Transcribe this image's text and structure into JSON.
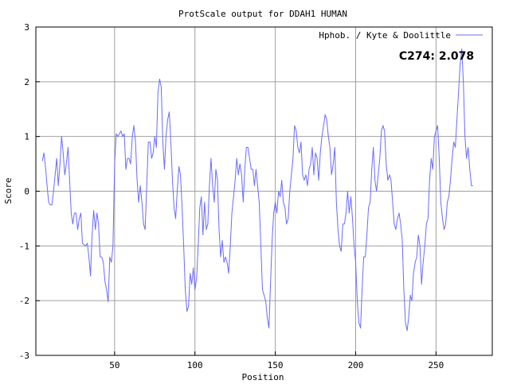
{
  "chart_data": {
    "type": "line",
    "title": "ProtScale output for DDAH1 HUMAN",
    "xlabel": "Position",
    "ylabel": "Score",
    "xlim": [
      1,
      285
    ],
    "ylim": [
      -3,
      3
    ],
    "x_ticks": [
      50,
      100,
      150,
      200,
      250
    ],
    "y_ticks": [
      -3,
      -2,
      -1,
      0,
      1,
      2,
      3
    ],
    "grid": true,
    "legend_position": "top-right",
    "annotation": "C274: 2.078",
    "series": [
      {
        "name": "Hphob. / Kyte & Doolittle",
        "color": "#6b6bff",
        "points": [
          [
            5,
            0.55
          ],
          [
            6,
            0.7
          ],
          [
            7,
            0.45
          ],
          [
            8,
            0.1
          ],
          [
            9,
            -0.2
          ],
          [
            10,
            -0.25
          ],
          [
            11,
            -0.25
          ],
          [
            12,
            0.0
          ],
          [
            13,
            0.3
          ],
          [
            14,
            0.6
          ],
          [
            15,
            0.1
          ],
          [
            16,
            0.5
          ],
          [
            17,
            1.0
          ],
          [
            18,
            0.7
          ],
          [
            19,
            0.3
          ],
          [
            20,
            0.5
          ],
          [
            21,
            0.8
          ],
          [
            22,
            0.2
          ],
          [
            23,
            -0.4
          ],
          [
            24,
            -0.6
          ],
          [
            25,
            -0.4
          ],
          [
            26,
            -0.4
          ],
          [
            27,
            -0.7
          ],
          [
            28,
            -0.5
          ],
          [
            29,
            -0.4
          ],
          [
            30,
            -0.95
          ],
          [
            31,
            -0.98
          ],
          [
            32,
            -1.0
          ],
          [
            33,
            -0.95
          ],
          [
            34,
            -1.2
          ],
          [
            35,
            -1.55
          ],
          [
            36,
            -0.8
          ],
          [
            37,
            -0.35
          ],
          [
            38,
            -0.7
          ],
          [
            39,
            -0.4
          ],
          [
            40,
            -0.6
          ],
          [
            41,
            -1.2
          ],
          [
            42,
            -1.2
          ],
          [
            43,
            -1.3
          ],
          [
            44,
            -1.65
          ],
          [
            45,
            -1.8
          ],
          [
            46,
            -2.02
          ],
          [
            47,
            -1.2
          ],
          [
            48,
            -1.3
          ],
          [
            49,
            -1.0
          ],
          [
            50,
            0.5
          ],
          [
            51,
            1.05
          ],
          [
            52,
            1.0
          ],
          [
            53,
            1.05
          ],
          [
            54,
            1.1
          ],
          [
            55,
            1.0
          ],
          [
            56,
            1.05
          ],
          [
            57,
            0.4
          ],
          [
            58,
            0.6
          ],
          [
            59,
            0.6
          ],
          [
            60,
            0.5
          ],
          [
            61,
            1.0
          ],
          [
            62,
            1.2
          ],
          [
            63,
            0.9
          ],
          [
            64,
            0.2
          ],
          [
            65,
            -0.2
          ],
          [
            66,
            0.1
          ],
          [
            67,
            -0.2
          ],
          [
            68,
            -0.6
          ],
          [
            69,
            -0.7
          ],
          [
            70,
            0.1
          ],
          [
            71,
            0.9
          ],
          [
            72,
            0.9
          ],
          [
            73,
            0.6
          ],
          [
            74,
            0.7
          ],
          [
            75,
            1.0
          ],
          [
            76,
            0.8
          ],
          [
            77,
            1.8
          ],
          [
            78,
            2.05
          ],
          [
            79,
            1.9
          ],
          [
            80,
            0.9
          ],
          [
            81,
            0.4
          ],
          [
            82,
            1.0
          ],
          [
            83,
            1.3
          ],
          [
            84,
            1.45
          ],
          [
            85,
            0.9
          ],
          [
            86,
            0.2
          ],
          [
            87,
            -0.3
          ],
          [
            88,
            -0.5
          ],
          [
            89,
            0.0
          ],
          [
            90,
            0.45
          ],
          [
            91,
            0.3
          ],
          [
            92,
            -0.3
          ],
          [
            93,
            -1.0
          ],
          [
            94,
            -1.8
          ],
          [
            95,
            -2.2
          ],
          [
            96,
            -2.1
          ],
          [
            97,
            -1.5
          ],
          [
            98,
            -1.7
          ],
          [
            99,
            -1.4
          ],
          [
            100,
            -1.8
          ],
          [
            101,
            -1.6
          ],
          [
            102,
            -1.0
          ],
          [
            103,
            -0.3
          ],
          [
            104,
            -0.1
          ],
          [
            105,
            -0.8
          ],
          [
            106,
            -0.2
          ],
          [
            107,
            -0.7
          ],
          [
            108,
            -0.6
          ],
          [
            109,
            0.1
          ],
          [
            110,
            0.6
          ],
          [
            111,
            0.1
          ],
          [
            112,
            -0.2
          ],
          [
            113,
            0.4
          ],
          [
            114,
            0.2
          ],
          [
            115,
            -0.7
          ],
          [
            116,
            -1.2
          ],
          [
            117,
            -0.9
          ],
          [
            118,
            -1.3
          ],
          [
            119,
            -1.2
          ],
          [
            120,
            -1.3
          ],
          [
            121,
            -1.5
          ],
          [
            122,
            -1.0
          ],
          [
            123,
            -0.4
          ],
          [
            124,
            -0.1
          ],
          [
            125,
            0.2
          ],
          [
            126,
            0.6
          ],
          [
            127,
            0.3
          ],
          [
            128,
            0.5
          ],
          [
            129,
            0.3
          ],
          [
            130,
            -0.2
          ],
          [
            131,
            0.4
          ],
          [
            132,
            0.8
          ],
          [
            133,
            0.8
          ],
          [
            134,
            0.6
          ],
          [
            135,
            0.4
          ],
          [
            136,
            0.4
          ],
          [
            137,
            0.1
          ],
          [
            138,
            0.4
          ],
          [
            139,
            0.1
          ],
          [
            140,
            -0.2
          ],
          [
            141,
            -1.0
          ],
          [
            142,
            -1.8
          ],
          [
            143,
            -1.9
          ],
          [
            144,
            -2.0
          ],
          [
            145,
            -2.3
          ],
          [
            146,
            -2.5
          ],
          [
            147,
            -1.7
          ],
          [
            148,
            -0.9
          ],
          [
            149,
            -0.4
          ],
          [
            150,
            -0.2
          ],
          [
            151,
            -0.4
          ],
          [
            152,
            0.0
          ],
          [
            153,
            -0.1
          ],
          [
            154,
            0.2
          ],
          [
            155,
            -0.2
          ],
          [
            156,
            -0.3
          ],
          [
            157,
            -0.6
          ],
          [
            158,
            -0.5
          ],
          [
            159,
            0.0
          ],
          [
            160,
            0.3
          ],
          [
            161,
            0.6
          ],
          [
            162,
            1.2
          ],
          [
            163,
            1.1
          ],
          [
            164,
            0.8
          ],
          [
            165,
            0.7
          ],
          [
            166,
            0.9
          ],
          [
            167,
            0.3
          ],
          [
            168,
            0.2
          ],
          [
            169,
            0.3
          ],
          [
            170,
            0.1
          ],
          [
            171,
            0.4
          ],
          [
            172,
            0.5
          ],
          [
            173,
            0.8
          ],
          [
            174,
            0.3
          ],
          [
            175,
            0.7
          ],
          [
            176,
            0.6
          ],
          [
            177,
            0.2
          ],
          [
            178,
            0.7
          ],
          [
            179,
            1.0
          ],
          [
            180,
            1.2
          ],
          [
            181,
            1.4
          ],
          [
            182,
            1.3
          ],
          [
            183,
            1.0
          ],
          [
            184,
            0.8
          ],
          [
            185,
            0.3
          ],
          [
            186,
            0.5
          ],
          [
            187,
            0.8
          ],
          [
            188,
            -0.2
          ],
          [
            189,
            -0.7
          ],
          [
            190,
            -1.0
          ],
          [
            191,
            -1.1
          ],
          [
            192,
            -0.6
          ],
          [
            193,
            -0.6
          ],
          [
            194,
            -0.4
          ],
          [
            195,
            0.0
          ],
          [
            196,
            -0.4
          ],
          [
            197,
            -0.1
          ],
          [
            198,
            -0.5
          ],
          [
            199,
            -1.0
          ],
          [
            200,
            -1.3
          ],
          [
            201,
            -2.0
          ],
          [
            202,
            -2.4
          ],
          [
            203,
            -2.5
          ],
          [
            204,
            -1.8
          ],
          [
            205,
            -1.2
          ],
          [
            206,
            -1.2
          ],
          [
            207,
            -0.8
          ],
          [
            208,
            -0.3
          ],
          [
            209,
            -0.2
          ],
          [
            210,
            0.4
          ],
          [
            211,
            0.8
          ],
          [
            212,
            0.2
          ],
          [
            213,
            0.0
          ],
          [
            214,
            0.3
          ],
          [
            215,
            0.6
          ],
          [
            216,
            1.1
          ],
          [
            217,
            1.2
          ],
          [
            218,
            1.1
          ],
          [
            219,
            0.5
          ],
          [
            220,
            0.2
          ],
          [
            221,
            0.3
          ],
          [
            222,
            0.2
          ],
          [
            223,
            -0.2
          ],
          [
            224,
            -0.6
          ],
          [
            225,
            -0.7
          ],
          [
            226,
            -0.5
          ],
          [
            227,
            -0.4
          ],
          [
            228,
            -0.6
          ],
          [
            229,
            -0.9
          ],
          [
            230,
            -1.8
          ],
          [
            231,
            -2.4
          ],
          [
            232,
            -2.55
          ],
          [
            233,
            -2.3
          ],
          [
            234,
            -1.9
          ],
          [
            235,
            -2.0
          ],
          [
            236,
            -1.5
          ],
          [
            237,
            -1.3
          ],
          [
            238,
            -1.2
          ],
          [
            239,
            -0.8
          ],
          [
            240,
            -1.0
          ],
          [
            241,
            -1.7
          ],
          [
            242,
            -1.3
          ],
          [
            243,
            -1.0
          ],
          [
            244,
            -0.6
          ],
          [
            245,
            -0.5
          ],
          [
            246,
            0.2
          ],
          [
            247,
            0.6
          ],
          [
            248,
            0.4
          ],
          [
            249,
            1.0
          ],
          [
            250,
            1.1
          ],
          [
            251,
            1.2
          ],
          [
            252,
            0.6
          ],
          [
            253,
            -0.2
          ],
          [
            254,
            -0.5
          ],
          [
            255,
            -0.7
          ],
          [
            256,
            -0.6
          ],
          [
            257,
            -0.2
          ],
          [
            258,
            -0.1
          ],
          [
            259,
            0.2
          ],
          [
            260,
            0.6
          ],
          [
            261,
            0.9
          ],
          [
            262,
            0.8
          ],
          [
            263,
            1.3
          ],
          [
            264,
            1.8
          ],
          [
            265,
            2.3
          ],
          [
            266,
            2.6
          ],
          [
            267,
            2.0
          ],
          [
            268,
            1.0
          ],
          [
            269,
            0.6
          ],
          [
            270,
            0.8
          ],
          [
            271,
            0.4
          ],
          [
            272,
            0.1
          ],
          [
            273,
            0.1
          ]
        ]
      }
    ]
  }
}
